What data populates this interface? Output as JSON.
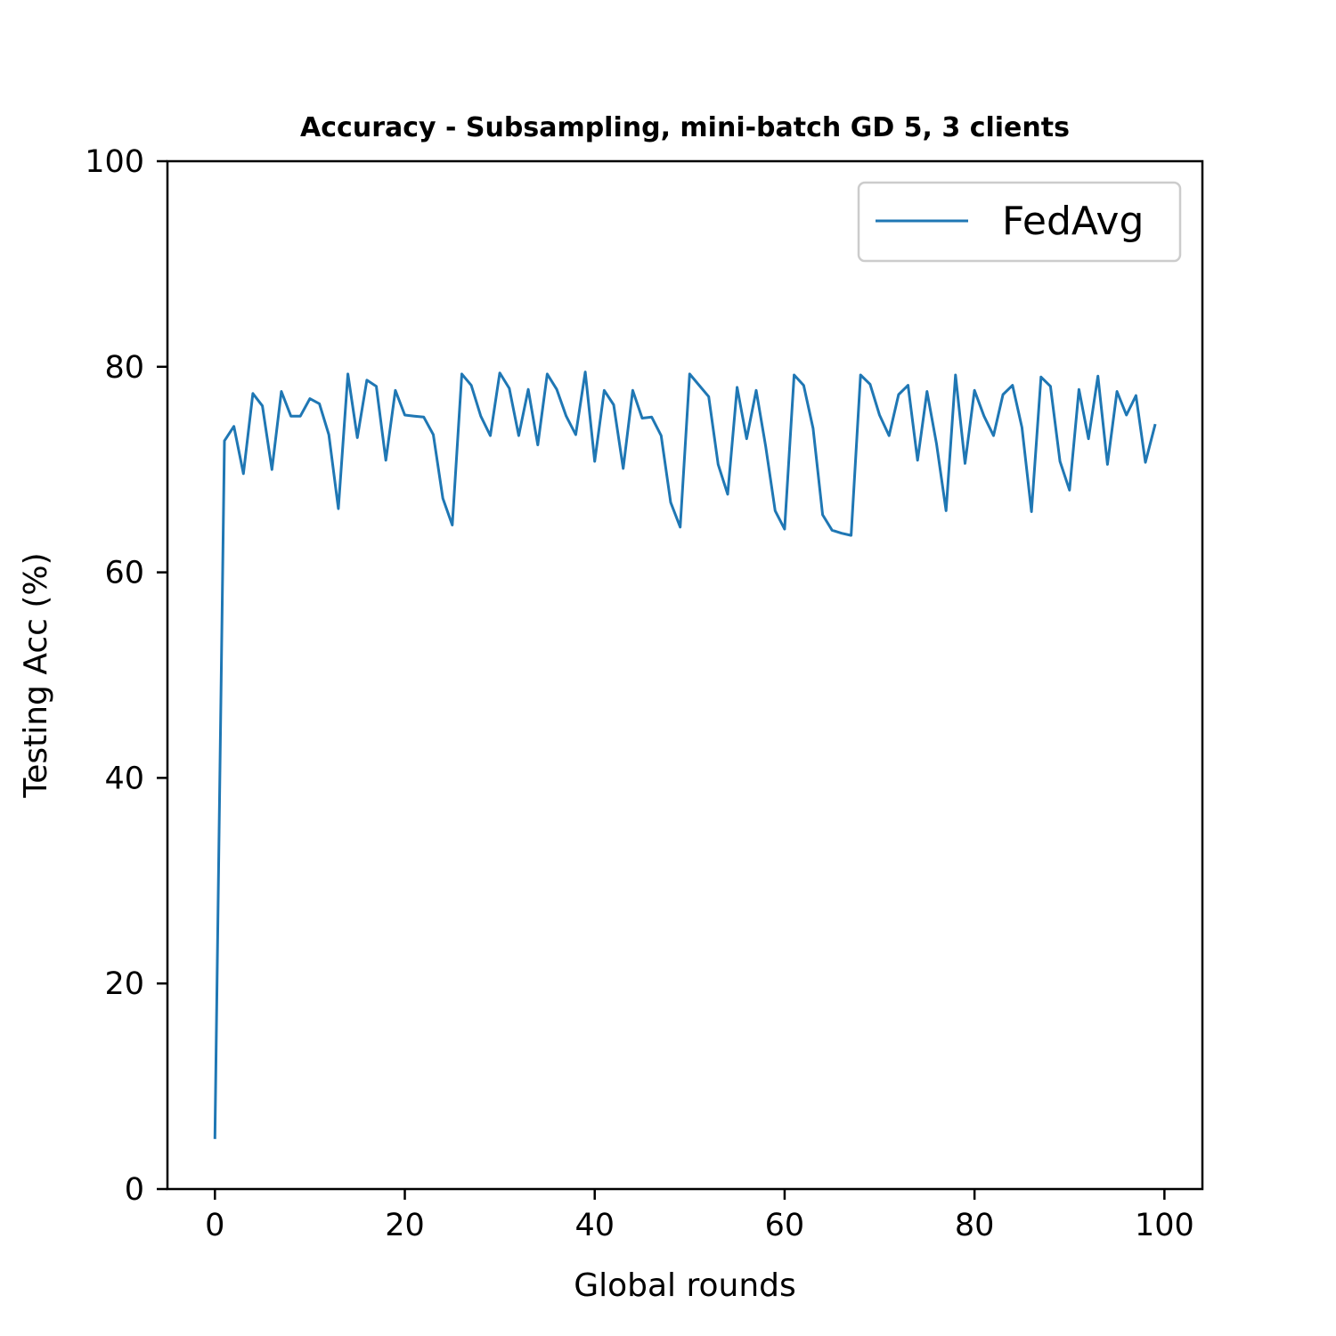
{
  "chart_data": {
    "type": "line",
    "title": "Accuracy - Subsampling, mini-batch GD 5, 3 clients",
    "xlabel": "Global rounds",
    "ylabel": "Testing Acc (%)",
    "xlim": [
      -5,
      104
    ],
    "ylim": [
      0,
      100
    ],
    "xticks": [
      0,
      20,
      40,
      60,
      80,
      100
    ],
    "yticks": [
      0,
      20,
      40,
      60,
      80,
      100
    ],
    "grid": false,
    "legend_position": "top-right",
    "series": [
      {
        "name": "FedAvg",
        "color": "#1f77b4",
        "x": [
          0,
          1,
          2,
          3,
          4,
          5,
          6,
          7,
          8,
          9,
          10,
          11,
          12,
          13,
          14,
          15,
          16,
          17,
          18,
          19,
          20,
          21,
          22,
          23,
          24,
          25,
          26,
          27,
          28,
          29,
          30,
          31,
          32,
          33,
          34,
          35,
          36,
          37,
          38,
          39,
          40,
          41,
          42,
          43,
          44,
          45,
          46,
          47,
          48,
          49,
          50,
          51,
          52,
          53,
          54,
          55,
          56,
          57,
          58,
          59,
          60,
          61,
          62,
          63,
          64,
          65,
          66,
          67,
          68,
          69,
          70,
          71,
          72,
          73,
          74,
          75,
          76,
          77,
          78,
          79,
          80,
          81,
          82,
          83,
          84,
          85,
          86,
          87,
          88,
          89,
          90,
          91,
          92,
          93,
          94,
          95,
          96,
          97,
          98,
          99
        ],
        "values": [
          5.0,
          72.8,
          74.2,
          69.6,
          77.4,
          76.2,
          70.0,
          77.6,
          75.2,
          75.2,
          76.9,
          76.4,
          73.4,
          66.2,
          79.3,
          73.1,
          78.7,
          78.1,
          70.9,
          77.7,
          75.3,
          75.2,
          75.1,
          73.4,
          67.2,
          64.6,
          79.3,
          78.2,
          75.2,
          73.3,
          79.4,
          77.9,
          73.3,
          77.8,
          72.4,
          79.3,
          77.8,
          75.2,
          73.4,
          79.5,
          70.8,
          77.7,
          76.3,
          70.1,
          77.7,
          75.0,
          75.1,
          73.3,
          66.8,
          64.4,
          79.3,
          78.2,
          77.1,
          70.5,
          67.6,
          78.0,
          73.0,
          77.7,
          72.3,
          66.0,
          64.2,
          79.2,
          78.2,
          74.0,
          65.6,
          64.1,
          63.8,
          63.6,
          79.2,
          78.3,
          75.3,
          73.3,
          77.3,
          78.2,
          70.9,
          77.6,
          72.5,
          66.0,
          79.2,
          70.6,
          77.7,
          75.2,
          73.3,
          77.3,
          78.2,
          74.1,
          65.9,
          79.0,
          78.1,
          70.8,
          68.0,
          77.8,
          73.0,
          79.1,
          70.5,
          77.6,
          75.3,
          77.2,
          70.7,
          74.3
        ]
      }
    ]
  }
}
